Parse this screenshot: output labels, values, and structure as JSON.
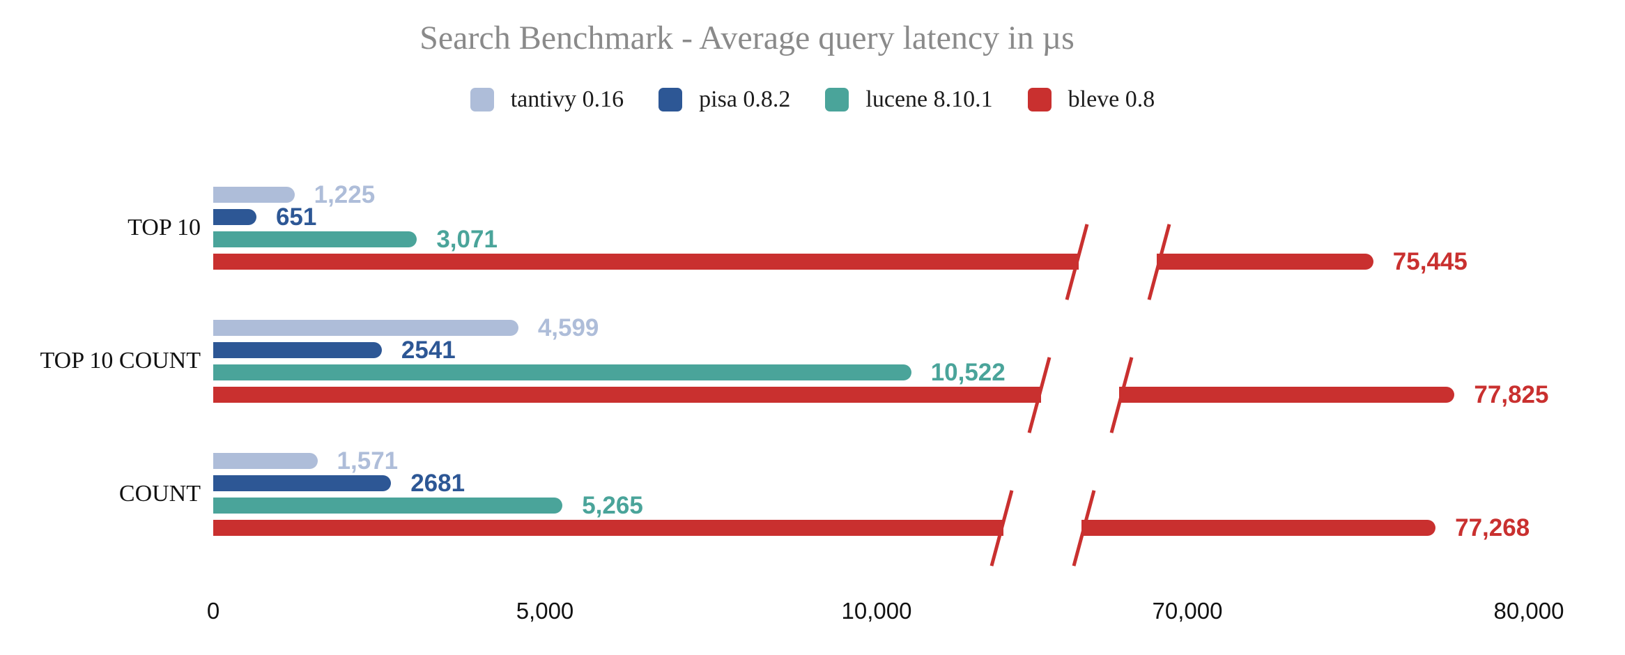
{
  "chart_data": {
    "type": "bar",
    "orientation": "horizontal",
    "title": "Search Benchmark - Average query latency in µs",
    "unit": "µs",
    "grid": false,
    "legend_position": "top",
    "categories": [
      "TOP 10",
      "TOP 10 COUNT",
      "COUNT"
    ],
    "series": [
      {
        "name": "tantivy 0.16",
        "color": "#aebdd9",
        "values": [
          1225,
          4599,
          1571
        ],
        "value_labels": [
          "1,225",
          "4,599",
          "1,571"
        ]
      },
      {
        "name": "pisa 0.8.2",
        "color": "#2d5795",
        "values": [
          651,
          2541,
          2681
        ],
        "value_labels": [
          "651",
          "2541",
          "2681"
        ]
      },
      {
        "name": "lucene 8.10.1",
        "color": "#4aa49a",
        "values": [
          3071,
          10522,
          5265
        ],
        "value_labels": [
          "3,071",
          "10,522",
          "5,265"
        ]
      },
      {
        "name": "bleve 0.8",
        "color": "#c9302f",
        "values": [
          75445,
          77825,
          77268
        ],
        "value_labels": [
          "75,445",
          "77,825",
          "77,268"
        ]
      }
    ],
    "x_axis": {
      "ticks": [
        {
          "value": 0,
          "label": "0"
        },
        {
          "value": 5000,
          "label": "5,000"
        },
        {
          "value": 10000,
          "label": "10,000"
        },
        {
          "value": 70000,
          "label": "70,000"
        },
        {
          "value": 80000,
          "label": "80,000"
        }
      ],
      "axis_break": {
        "between": [
          12000,
          70000
        ]
      }
    }
  }
}
